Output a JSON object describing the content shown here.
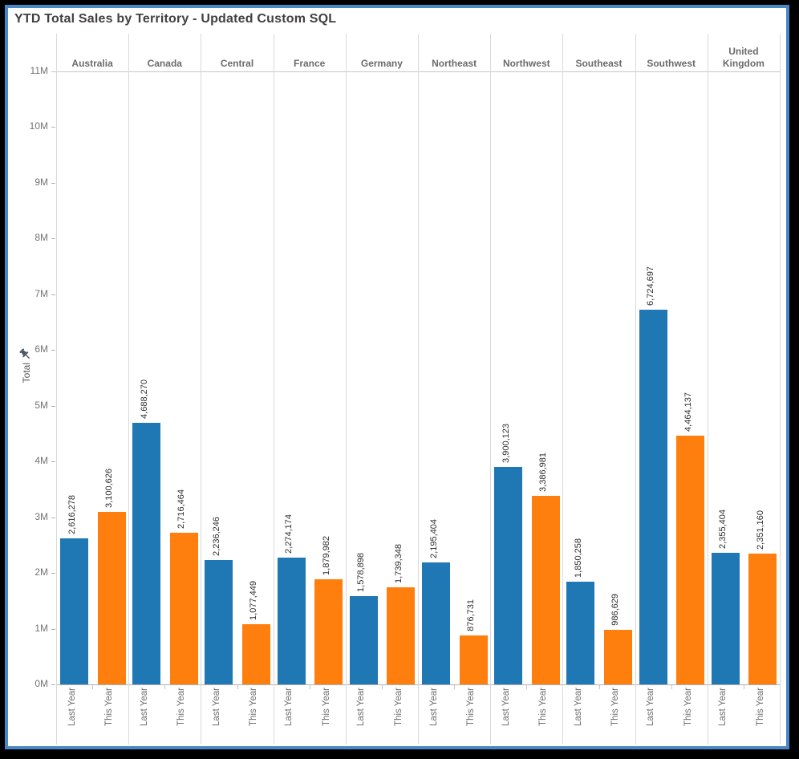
{
  "window": {
    "border_color": "#4a88c5"
  },
  "title": "YTD Total Sales by Territory - Updated Custom SQL",
  "y_axis": {
    "label": "Total",
    "pinned": true,
    "ticks": [
      "0M",
      "1M",
      "2M",
      "3M",
      "4M",
      "5M",
      "6M",
      "7M",
      "8M",
      "9M",
      "10M",
      "11M"
    ]
  },
  "chart_data": {
    "type": "bar",
    "title": "YTD Total Sales by Territory - Updated Custom SQL",
    "categories": [
      "Australia",
      "Canada",
      "Central",
      "France",
      "Germany",
      "Northeast",
      "Northwest",
      "Southeast",
      "Southwest",
      "United Kingdom"
    ],
    "x_sub_categories": [
      "Last Year",
      "This Year"
    ],
    "series": [
      {
        "name": "Last Year",
        "color": "#1f77b4",
        "values": [
          2616278,
          4688270,
          2236246,
          2274174,
          1578898,
          2195404,
          3900123,
          1850258,
          6724697,
          2355404
        ]
      },
      {
        "name": "This Year",
        "color": "#ff7f0e",
        "values": [
          3100626,
          2716464,
          1077449,
          1879982,
          1739348,
          876731,
          3386981,
          986629,
          4464137,
          2351160
        ]
      }
    ],
    "ylabel": "Total",
    "ylim": [
      0,
      11000000
    ],
    "grid": "vertical-column-dividers-only",
    "legend": "none",
    "value_labels": true,
    "value_label_format": "#,###"
  },
  "colors": {
    "bar_last_year": "#1f77b4",
    "bar_this_year": "#ff7f0e",
    "divider": "#d9d9d9",
    "axis_line": "#b0b0b0",
    "tick_text": "#737373",
    "header_text": "#6b6b6b",
    "value_text": "#2f2f2f",
    "x_label_text": "#6e6e6e",
    "title_text": "#423f3f"
  }
}
